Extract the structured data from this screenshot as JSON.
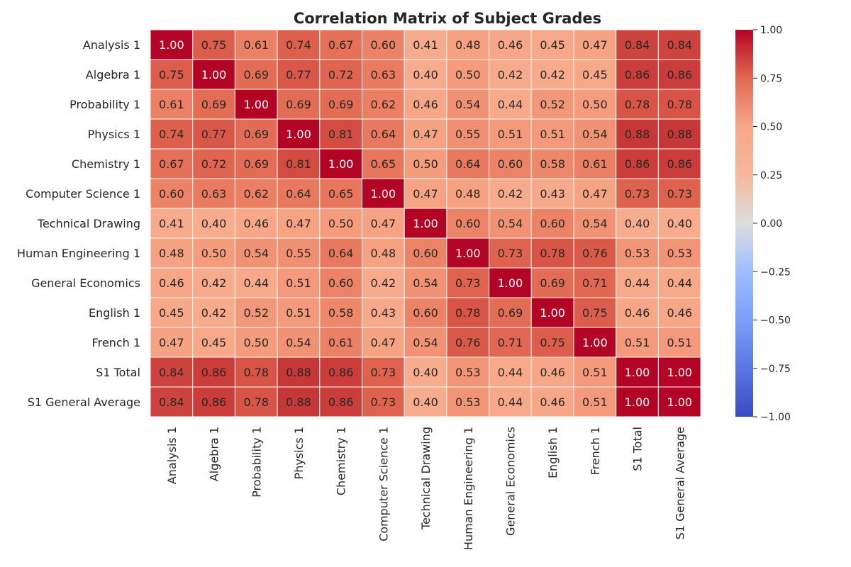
{
  "chart_data": {
    "type": "heatmap",
    "title": "Correlation Matrix of Subject Grades",
    "labels": [
      "Analysis 1",
      "Algebra 1",
      "Probability 1",
      "Physics 1",
      "Chemistry 1",
      "Computer Science 1",
      "Technical Drawing",
      "Human Engineering 1",
      "General Economics",
      "English 1",
      "French 1",
      "S1 Total",
      "S1 General Average"
    ],
    "values": [
      [
        1.0,
        0.75,
        0.61,
        0.74,
        0.67,
        0.6,
        0.41,
        0.48,
        0.46,
        0.45,
        0.47,
        0.84,
        0.84
      ],
      [
        0.75,
        1.0,
        0.69,
        0.77,
        0.72,
        0.63,
        0.4,
        0.5,
        0.42,
        0.42,
        0.45,
        0.86,
        0.86
      ],
      [
        0.61,
        0.69,
        1.0,
        0.69,
        0.69,
        0.62,
        0.46,
        0.54,
        0.44,
        0.52,
        0.5,
        0.78,
        0.78
      ],
      [
        0.74,
        0.77,
        0.69,
        1.0,
        0.81,
        0.64,
        0.47,
        0.55,
        0.51,
        0.51,
        0.54,
        0.88,
        0.88
      ],
      [
        0.67,
        0.72,
        0.69,
        0.81,
        1.0,
        0.65,
        0.5,
        0.64,
        0.6,
        0.58,
        0.61,
        0.86,
        0.86
      ],
      [
        0.6,
        0.63,
        0.62,
        0.64,
        0.65,
        1.0,
        0.47,
        0.48,
        0.42,
        0.43,
        0.47,
        0.73,
        0.73
      ],
      [
        0.41,
        0.4,
        0.46,
        0.47,
        0.5,
        0.47,
        1.0,
        0.6,
        0.54,
        0.6,
        0.54,
        0.4,
        0.4
      ],
      [
        0.48,
        0.5,
        0.54,
        0.55,
        0.64,
        0.48,
        0.6,
        1.0,
        0.73,
        0.78,
        0.76,
        0.53,
        0.53
      ],
      [
        0.46,
        0.42,
        0.44,
        0.51,
        0.6,
        0.42,
        0.54,
        0.73,
        1.0,
        0.69,
        0.71,
        0.44,
        0.44
      ],
      [
        0.45,
        0.42,
        0.52,
        0.51,
        0.58,
        0.43,
        0.6,
        0.78,
        0.69,
        1.0,
        0.75,
        0.46,
        0.46
      ],
      [
        0.47,
        0.45,
        0.5,
        0.54,
        0.61,
        0.47,
        0.54,
        0.76,
        0.71,
        0.75,
        1.0,
        0.51,
        0.51
      ],
      [
        0.84,
        0.86,
        0.78,
        0.88,
        0.86,
        0.73,
        0.4,
        0.53,
        0.44,
        0.46,
        0.51,
        1.0,
        1.0
      ],
      [
        0.84,
        0.86,
        0.78,
        0.88,
        0.86,
        0.73,
        0.4,
        0.53,
        0.44,
        0.46,
        0.51,
        1.0,
        1.0
      ]
    ],
    "colorbar": {
      "range": [
        -1,
        1
      ],
      "ticks": [
        1.0,
        0.75,
        0.5,
        0.25,
        0.0,
        -0.25,
        -0.5,
        -0.75,
        -1.0
      ],
      "tick_labels": [
        "1.00",
        "0.75",
        "0.50",
        "0.25",
        "0.00",
        "−0.25",
        "−0.50",
        "−0.75",
        "−1.00"
      ],
      "colormap": "coolwarm"
    },
    "cell_label_format": "2 decimals"
  }
}
